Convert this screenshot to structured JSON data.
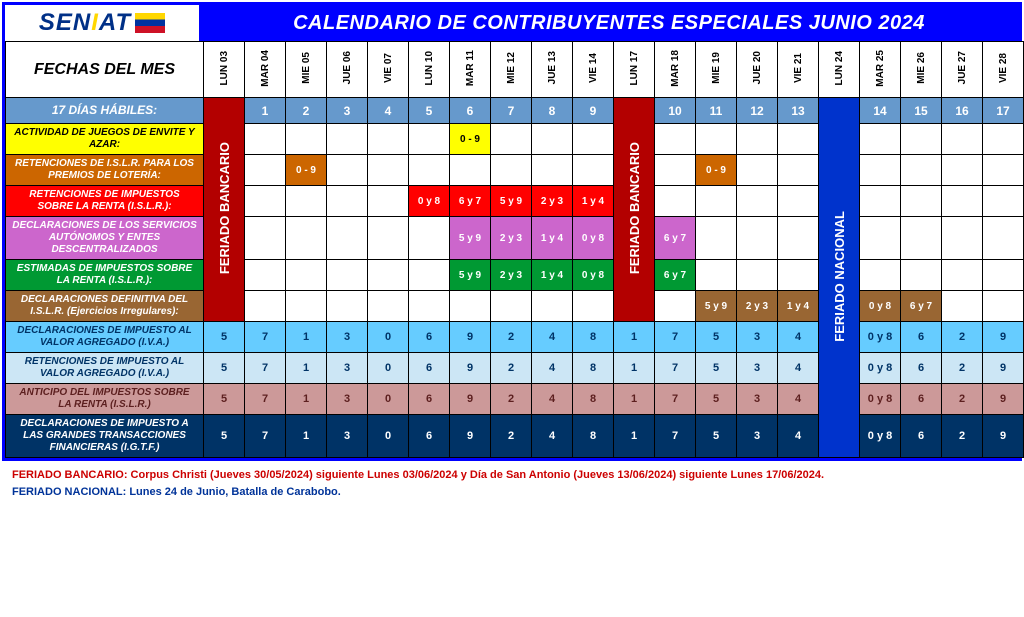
{
  "header": {
    "logo_prefix": "SEN",
    "logo_mid": "I",
    "logo_suffix": "AT",
    "title": "CALENDARIO DE CONTRIBUYENTES ESPECIALES JUNIO 2024"
  },
  "labels": {
    "fechas": "FECHAS DEL MES",
    "habiles": "17 DÍAS HÁBILES:",
    "feriado_bancario": "FERIADO BANCARIO",
    "feriado_nacional": "FERIADO NACIONAL"
  },
  "dates": [
    "LUN 03",
    "MAR 04",
    "MIE 05",
    "JUE 06",
    "VIE 07",
    "LUN 10",
    "MAR 11",
    "MIE 12",
    "JUE 13",
    "VIE 14",
    "LUN 17",
    "MAR 18",
    "MIE 19",
    "JUE 20",
    "VIE 21",
    "LUN 24",
    "MAR 25",
    "MIE 26",
    "JUE 27",
    "VIE 28"
  ],
  "habiles_values": [
    "",
    "1",
    "2",
    "3",
    "4",
    "5",
    "6",
    "7",
    "8",
    "9",
    "",
    "10",
    "11",
    "12",
    "13",
    "",
    "14",
    "15",
    "16",
    "17"
  ],
  "rows": [
    {
      "id": "juegos",
      "label": "ACTIVIDAD DE JUEGOS DE ENVITE Y AZAR:",
      "bg": "bg-yellow",
      "cells": {
        "6": "0 - 9"
      }
    },
    {
      "id": "loteria",
      "label": "RETENCIONES DE I.S.L.R. PARA LOS PREMIOS DE LOTERÍA:",
      "bg": "bg-orange",
      "cells": {
        "2": "0 - 9",
        "12": "0 - 9"
      }
    },
    {
      "id": "ret-islr",
      "label": "RETENCIONES DE IMPUESTOS SOBRE LA RENTA (I.S.L.R.):",
      "bg": "bg-red",
      "cells": {
        "5": "0 y 8",
        "6": "6 y 7",
        "7": "5 y 9",
        "8": "2 y 3",
        "9": "1 y 4"
      }
    },
    {
      "id": "serv-aut",
      "label": "DECLARACIONES DE LOS SERVICIOS AUTÓNOMOS Y ENTES DESCENTRALIZADOS",
      "bg": "bg-purple",
      "cells": {
        "7": "5 y 9",
        "8": "2 y 3",
        "9": "1 y 4",
        "10": "0 y 8",
        "12": "6 y 7"
      }
    },
    {
      "id": "estim",
      "label": "ESTIMADAS DE IMPUESTOS SOBRE LA RENTA (I.S.L.R.):",
      "bg": "bg-green",
      "cells": {
        "7": "5 y 9",
        "8": "2 y 3",
        "9": "1 y 4",
        "10": "0 y 8",
        "12": "6 y 7"
      }
    },
    {
      "id": "def-islr",
      "label": "DECLARACIONES DEFINITIVA DEL I.S.L.R. (Ejercicios Irregulares):",
      "bg": "bg-brown",
      "cells": {
        "13": "5 y 9",
        "14": "2 y 3",
        "15": "1 y 4",
        "17": "0 y 8",
        "18": "6 y 7"
      }
    }
  ],
  "numeric_rows": [
    {
      "id": "iva-dec",
      "label": "DECLARACIONES DE IMPUESTO AL VALOR AGREGADO (I.V.A.)",
      "cls": "num-blue",
      "vals": [
        "5",
        "7",
        "1",
        "3",
        "0",
        "6",
        "9",
        "2",
        "4",
        "8",
        "1",
        "7",
        "5",
        "3",
        "4",
        "0 y 8",
        "6",
        "2",
        "9"
      ]
    },
    {
      "id": "iva-ret",
      "label": "RETENCIONES DE IMPUESTO AL VALOR AGREGADO (I.V.A.)",
      "cls": "num-lightblue",
      "vals": [
        "5",
        "7",
        "1",
        "3",
        "0",
        "6",
        "9",
        "2",
        "4",
        "8",
        "1",
        "7",
        "5",
        "3",
        "4",
        "0 y 8",
        "6",
        "2",
        "9"
      ]
    },
    {
      "id": "anticipo",
      "label": "ANTICIPO DEL IMPUESTOS SOBRE LA RENTA (I.S.L.R.)",
      "cls": "num-pink",
      "vals": [
        "5",
        "7",
        "1",
        "3",
        "0",
        "6",
        "9",
        "2",
        "4",
        "8",
        "1",
        "7",
        "5",
        "3",
        "4",
        "0 y 8",
        "6",
        "2",
        "9"
      ]
    },
    {
      "id": "igtf",
      "label": "DECLARACIONES DE IMPUESTO A LAS GRANDES TRANSACCIONES FINANCIERAS (I.G.T.F.)",
      "cls": "num-navy",
      "vals": [
        "5",
        "7",
        "1",
        "3",
        "0",
        "6",
        "9",
        "2",
        "4",
        "8",
        "1",
        "7",
        "5",
        "3",
        "4",
        "0 y 8",
        "6",
        "2",
        "9"
      ]
    }
  ],
  "footnotes": {
    "banc": "FERIADO BANCARIO:  Corpus Christi (Jueves 30/05/2024) siguiente Lunes 03/06/2024 y Día de San Antonio (Jueves 13/06/2024) siguiente Lunes 17/06/2024.",
    "nac": "FERIADO NACIONAL: Lunes 24 de Junio, Batalla de Carabobo."
  }
}
